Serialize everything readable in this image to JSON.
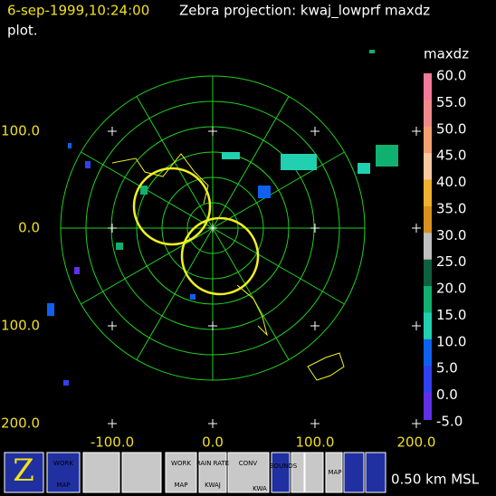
{
  "header": {
    "timestamp": "6-sep-1999,10:24:00",
    "title": "Zebra projection: kwaj_lowprf maxdz",
    "title_cont": "plot."
  },
  "axes": {
    "x_labels": [
      "-100.0",
      "0.0",
      "100.0",
      "200.0"
    ],
    "y_labels": [
      "100.0",
      "0.0",
      "100.0",
      "200.0"
    ]
  },
  "colorbar": {
    "title": "maxdz",
    "labels": [
      "60.0",
      "55.0",
      "50.0",
      "45.0",
      "40.0",
      "35.0",
      "30.0",
      "25.0",
      "20.0",
      "15.0",
      "10.0",
      "5.0",
      "0.0",
      "-5.0"
    ],
    "colors": [
      "#f27a9a",
      "#f08a8a",
      "#f5a070",
      "#f8c8a0",
      "#f0b030",
      "#d89020",
      "#c0c0c0",
      "#106040",
      "#10b070",
      "#20d0b0",
      "#1060f0",
      "#3040f0",
      "#6030e8",
      "#8020f0"
    ]
  },
  "toolbar": {
    "icons": [
      {
        "label": "WORK",
        "sub": "MAP"
      },
      {
        "label": "WORK",
        "sub": "MAP"
      },
      {
        "label": "RAIN RATE",
        "sub": "KWAJ"
      },
      {
        "label": "CONV",
        "sub": "KWA"
      },
      {
        "label": "BOUNDS",
        "sub": "MAP"
      }
    ]
  },
  "status": "0.50 km MSL"
}
